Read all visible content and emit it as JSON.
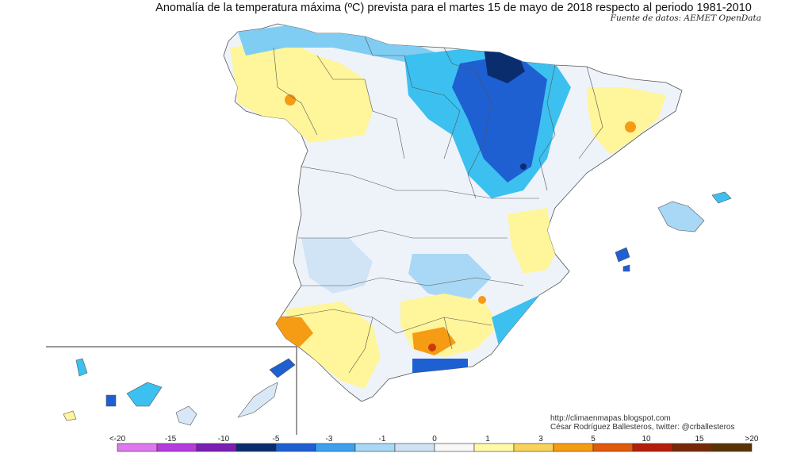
{
  "title": "Anomalía de la temperatura máxima (ºC) prevista para el martes 15 de mayo de 2018 respecto al periodo 1981-2010",
  "source": "Fuente de datos: AEMET OpenData",
  "credits": {
    "url": "http://climaenmapas.blogspot.com",
    "author": "César Rodríguez Ballesteros, twitter: @crballesteros"
  },
  "legend": {
    "ticks": [
      "<-20",
      "-15",
      "-10",
      "-5",
      "-3",
      "-1",
      "0",
      "1",
      "3",
      "5",
      "10",
      "15",
      ">20"
    ],
    "colors": [
      "#dc78f0",
      "#b43cdc",
      "#7a1eb4",
      "#0a2d6e",
      "#1e5fd2",
      "#3ca0f0",
      "#a8d8f5",
      "#cfe2f3",
      "#f8f8f8",
      "#fffaa8",
      "#f8d25a",
      "#f59b14",
      "#e05a0a",
      "#b41e0a",
      "#782806",
      "#5a3205"
    ]
  },
  "palette": {
    "pale_blue": "#d9e8f6",
    "light_blue": "#a8d8f5",
    "cyan": "#3cc0f0",
    "blue": "#1e5fd2",
    "dark_blue": "#0a2d6e",
    "yellow": "#fff59a",
    "orange": "#f59b14",
    "red": "#c83c0a",
    "white": "#fafafa"
  }
}
